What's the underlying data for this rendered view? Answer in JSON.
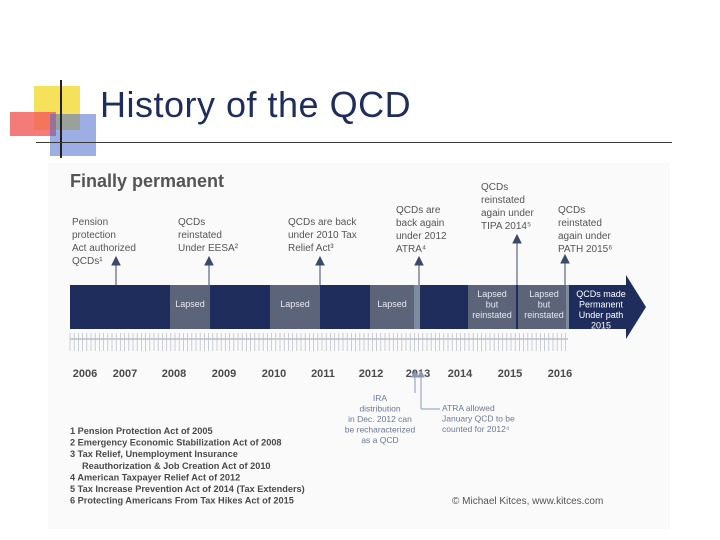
{
  "slide": {
    "title": "History of the QCD"
  },
  "figure": {
    "heading": "Finally permanent",
    "events": [
      {
        "lines": [
          "Pension",
          "protection",
          "Act authorized",
          "QCDs¹"
        ]
      },
      {
        "lines": [
          "QCDs",
          "reinstated",
          "Under EESA²"
        ]
      },
      {
        "lines": [
          "QCDs are back",
          "under 2010 Tax",
          "Relief Act³"
        ]
      },
      {
        "lines": [
          "QCDs are",
          "back again",
          "under 2012",
          "ATRA⁴"
        ]
      },
      {
        "lines": [
          "QCDs",
          "reinstated",
          "again under",
          "TIPA 2014⁵"
        ]
      },
      {
        "lines": [
          "QCDs",
          "reinstated",
          "again under",
          "PATH 2015⁶"
        ]
      }
    ],
    "bar_segments": [
      {
        "lines": [
          "Lapsed"
        ]
      },
      {
        "lines": [
          "Lapsed"
        ]
      },
      {
        "lines": [
          "Lapsed"
        ]
      },
      {
        "lines": [
          "Lapsed",
          "but",
          "reinstated"
        ]
      },
      {
        "lines": [
          "Lapsed",
          "but",
          "reinstated"
        ]
      },
      {
        "lines": [
          "QCDs made",
          "Permanent",
          "Under path",
          "2015"
        ]
      }
    ],
    "years": [
      "2006",
      "2007",
      "2008",
      "2009",
      "2010",
      "2011",
      "2012",
      "2013",
      "2014",
      "2015",
      "2016"
    ],
    "notes_below": [
      {
        "lines": [
          "IRA",
          "distribution",
          "in Dec. 2012 can",
          "be recharacterized",
          "as a QCD"
        ]
      },
      {
        "lines": [
          "ATRA allowed",
          "January QCD to be",
          "counted for 2012⁴"
        ]
      }
    ],
    "footnotes": [
      "1 Pension Protection Act of 2005",
      "2 Emergency Economic Stabilization Act of 2008",
      "3 Tax Relief, Unemployment Insurance",
      "Reauthorization & Job Creation Act of 2010",
      "4 American Taxpayer Relief Act of 2012",
      "5 Tax Increase Prevention Act of 2014 (Tax Extenders)",
      "6 Protecting Americans From Tax Hikes Act of 2015"
    ],
    "credit": "© Michael Kitces, www.kitces.com"
  },
  "colors": {
    "navy": "#1f2d5c",
    "lapsed": "#5b6478",
    "gap": "#7d8aa0",
    "tick": "#9ca3b0",
    "text": "#4a4a4a",
    "note": "#6a7a95",
    "arrow": "#3b4a6b"
  }
}
